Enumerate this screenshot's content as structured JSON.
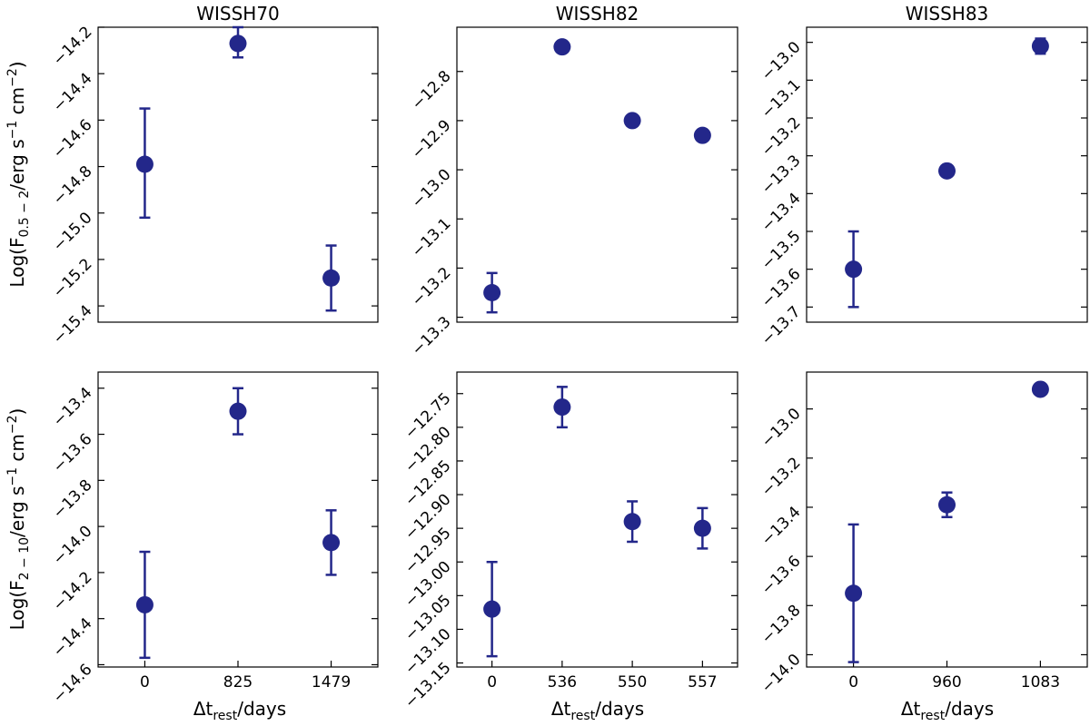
{
  "figure": {
    "ylabel_top": "Log(F",
    "ylabel_top_sub": "0.5 − 2",
    "ylabel_top_rest": "/erg s",
    "ylabel_top_sup1": "−1",
    "ylabel_top_mid": " cm",
    "ylabel_top_sup2": "−2",
    "ylabel_top_end": ")",
    "ylabel_bottom": "Log(F",
    "ylabel_bottom_sub": "2 − 10",
    "ylabel_bottom_rest": "/erg s",
    "ylabel_bottom_sup1": "−1",
    "ylabel_bottom_mid": " cm",
    "ylabel_bottom_sup2": "−2",
    "ylabel_bottom_end": ")",
    "xlabel_main": "Δt",
    "xlabel_sub": "rest",
    "xlabel_end": "/days",
    "marker_color": "#23278a"
  },
  "chart_data": [
    {
      "type": "scatter",
      "title": "WISSH70",
      "row": 0,
      "col": 0,
      "categories": [
        "0",
        "825",
        "1479"
      ],
      "values": [
        -14.79,
        -14.27,
        -15.28
      ],
      "err_low": [
        0.23,
        0.06,
        0.14
      ],
      "err_high": [
        0.24,
        0.07,
        0.14
      ],
      "ylim": [
        -15.47,
        -14.2
      ],
      "yticks": [
        -14.2,
        -14.4,
        -14.6,
        -14.8,
        -15.0,
        -15.2,
        -15.4
      ],
      "yticklabels": [
        "−14.2",
        "−14.4",
        "−14.6",
        "−14.8",
        "−15.0",
        "−15.2",
        "−15.4"
      ]
    },
    {
      "type": "scatter",
      "title": "WISSH82",
      "row": 0,
      "col": 1,
      "categories": [
        "0",
        "536",
        "550",
        "557"
      ],
      "values": [
        -13.25,
        -12.75,
        -12.9,
        -12.93
      ],
      "err_low": [
        0.04,
        0.0,
        0.0,
        0.0
      ],
      "err_high": [
        0.04,
        0.0,
        0.0,
        0.0
      ],
      "ylim": [
        -13.31,
        -12.71
      ],
      "yticks": [
        -12.8,
        -12.9,
        -13.0,
        -13.1,
        -13.2,
        -13.3
      ],
      "yticklabels": [
        "−12.8",
        "−12.9",
        "−13.0",
        "−13.1",
        "−13.2",
        "−13.3"
      ]
    },
    {
      "type": "scatter",
      "title": "WISSH83",
      "row": 0,
      "col": 2,
      "categories": [
        "0",
        "960",
        "1083"
      ],
      "values": [
        -13.6,
        -13.34,
        -13.01
      ],
      "err_low": [
        0.1,
        0.0,
        0.02
      ],
      "err_high": [
        0.1,
        0.0,
        0.02
      ],
      "ylim": [
        -13.74,
        -12.96
      ],
      "yticks": [
        -13.0,
        -13.1,
        -13.2,
        -13.3,
        -13.4,
        -13.5,
        -13.6,
        -13.7
      ],
      "yticklabels": [
        "−13.0",
        "−13.1",
        "−13.2",
        "−13.3",
        "−13.4",
        "−13.5",
        "−13.6",
        "−13.7"
      ]
    },
    {
      "type": "scatter",
      "title": "",
      "row": 1,
      "col": 0,
      "categories": [
        "0",
        "825",
        "1479"
      ],
      "values": [
        -14.34,
        -13.5,
        -14.07
      ],
      "err_low": [
        0.23,
        0.1,
        0.14
      ],
      "err_high": [
        0.23,
        0.1,
        0.14
      ],
      "ylim": [
        -14.61,
        -13.33
      ],
      "yticks": [
        -13.4,
        -13.6,
        -13.8,
        -14.0,
        -14.2,
        -14.4,
        -14.6
      ],
      "yticklabels": [
        "−13.4",
        "−13.6",
        "−13.8",
        "−14.0",
        "−14.2",
        "−14.4",
        "−14.6"
      ]
    },
    {
      "type": "scatter",
      "title": "",
      "row": 1,
      "col": 1,
      "categories": [
        "0",
        "536",
        "550",
        "557"
      ],
      "values": [
        -13.07,
        -12.77,
        -12.94,
        -12.95
      ],
      "err_low": [
        0.07,
        0.03,
        0.03,
        0.03
      ],
      "err_high": [
        0.07,
        0.03,
        0.03,
        0.03
      ],
      "ylim": [
        -13.156,
        -12.718
      ],
      "yticks": [
        -12.75,
        -12.8,
        -12.85,
        -12.9,
        -12.95,
        -13.0,
        -13.05,
        -13.1,
        -13.15
      ],
      "yticklabels": [
        "−12.75",
        "−12.80",
        "−12.85",
        "−12.90",
        "−12.95",
        "−13.00",
        "−13.05",
        "−13.10",
        "−13.15"
      ]
    },
    {
      "type": "scatter",
      "title": "",
      "row": 1,
      "col": 2,
      "categories": [
        "0",
        "960",
        "1083"
      ],
      "values": [
        -13.75,
        -13.39,
        -12.92
      ],
      "err_low": [
        0.28,
        0.05,
        0.0
      ],
      "err_high": [
        0.28,
        0.05,
        0.0
      ],
      "ylim": [
        -14.05,
        -12.85
      ],
      "yticks": [
        -13.0,
        -13.2,
        -13.4,
        -13.6,
        -13.8,
        -14.0
      ],
      "yticklabels": [
        "−13.0",
        "−13.2",
        "−13.4",
        "−13.6",
        "−13.8",
        "−14.0"
      ]
    }
  ]
}
